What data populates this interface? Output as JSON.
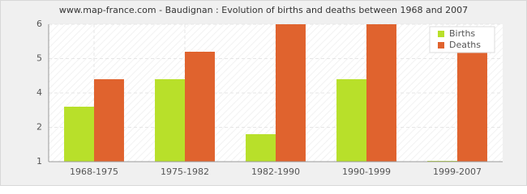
{
  "chart_data": {
    "type": "bar",
    "title": "www.map-france.com - Baudignan : Evolution of births and deaths between 1968 and 2007",
    "categories": [
      "1968-1975",
      "1975-1982",
      "1982-1990",
      "1990-1999",
      "1999-2007"
    ],
    "series": [
      {
        "name": "Births",
        "color": "#b8e02a",
        "values": [
          3,
          4,
          2,
          4,
          1
        ]
      },
      {
        "name": "Deaths",
        "color": "#e0632e",
        "values": [
          4,
          5,
          6,
          6,
          5
        ]
      }
    ],
    "ylim": [
      1,
      6
    ],
    "yticks": [
      1,
      {
        "value": 2.25,
        "label": "2"
      },
      {
        "value": 3.5,
        "label": "4"
      },
      {
        "value": 4.75,
        "label": "5"
      },
      6
    ],
    "grid": true,
    "legend": "top-right"
  }
}
